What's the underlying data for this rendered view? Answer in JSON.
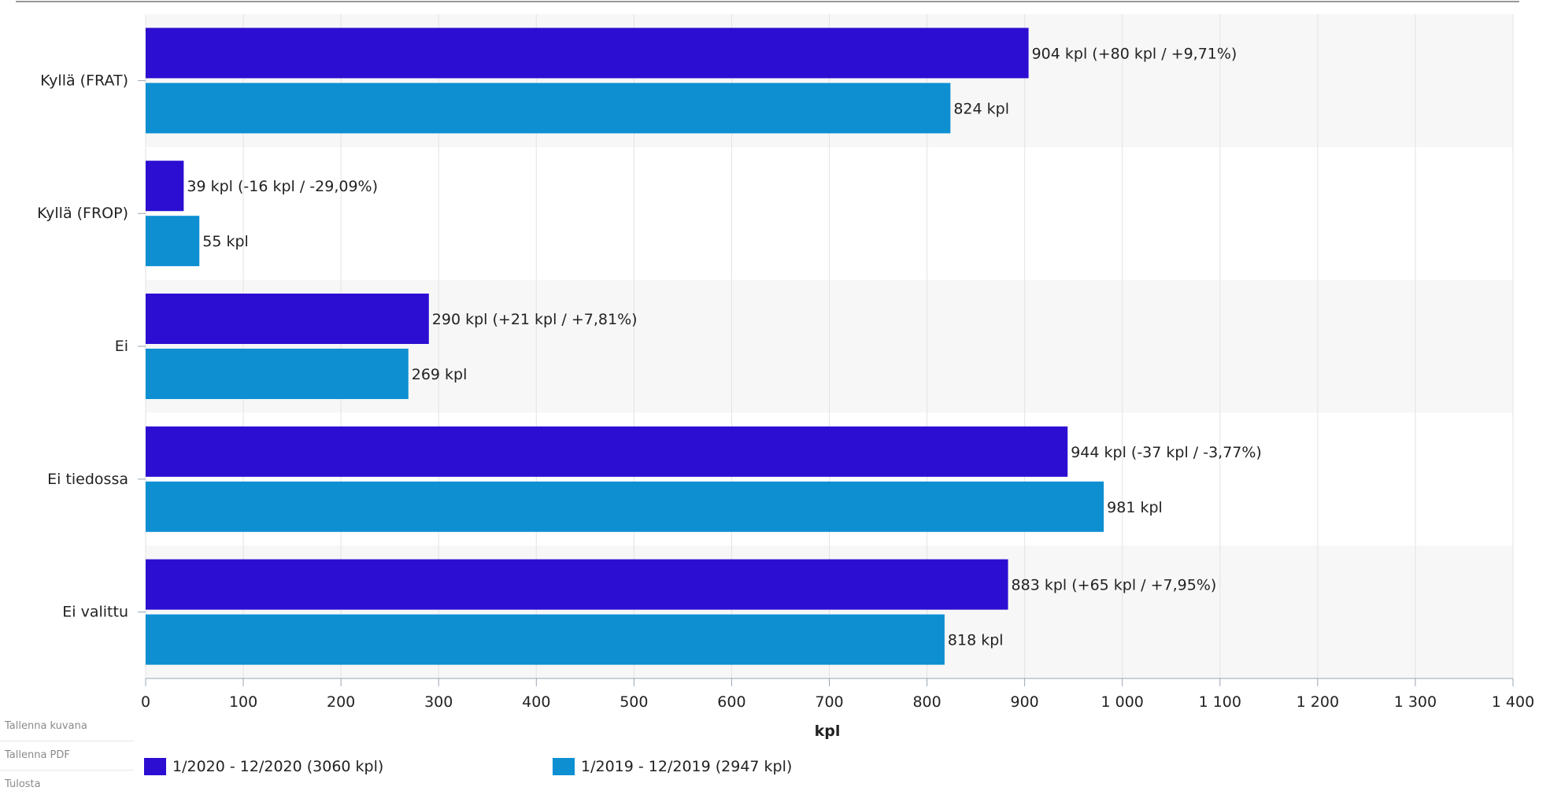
{
  "chart_data": {
    "type": "bar",
    "orientation": "horizontal",
    "categories": [
      "Kyllä (FRAT)",
      "Kyllä (FROP)",
      "Ei",
      "Ei tiedossa",
      "Ei valittu"
    ],
    "series": [
      {
        "name": "1/2020 - 12/2020 (3060 kpl)",
        "color": "#2c0ed2",
        "values": [
          904,
          39,
          290,
          944,
          883
        ],
        "labels": [
          "904 kpl (+80 kpl / +9,71%)",
          "39 kpl (-16 kpl / -29,09%)",
          "290 kpl (+21 kpl / +7,81%)",
          "944 kpl (-37 kpl / -3,77%)",
          "883 kpl (+65 kpl / +7,95%)"
        ]
      },
      {
        "name": "1/2019 - 12/2019 (2947 kpl)",
        "color": "#0d8fd2",
        "values": [
          824,
          55,
          269,
          981,
          818
        ],
        "labels": [
          "824 kpl",
          "55 kpl",
          "269 kpl",
          "981 kpl",
          "818 kpl"
        ]
      }
    ],
    "xlabel": "kpl",
    "xlim": [
      0,
      1400
    ],
    "xticks": [
      0,
      100,
      200,
      300,
      400,
      500,
      600,
      700,
      800,
      900,
      1000,
      1100,
      1200,
      1300,
      1400
    ],
    "xtick_labels": [
      "0",
      "100",
      "200",
      "300",
      "400",
      "500",
      "600",
      "700",
      "800",
      "900",
      "1 000",
      "1 100",
      "1 200",
      "1 300",
      "1 400"
    ],
    "grid": "vertical",
    "legend": "bottom"
  },
  "actions": {
    "save_image": "Tallenna kuvana",
    "save_pdf": "Tallenna PDF",
    "print": "Tulosta"
  }
}
